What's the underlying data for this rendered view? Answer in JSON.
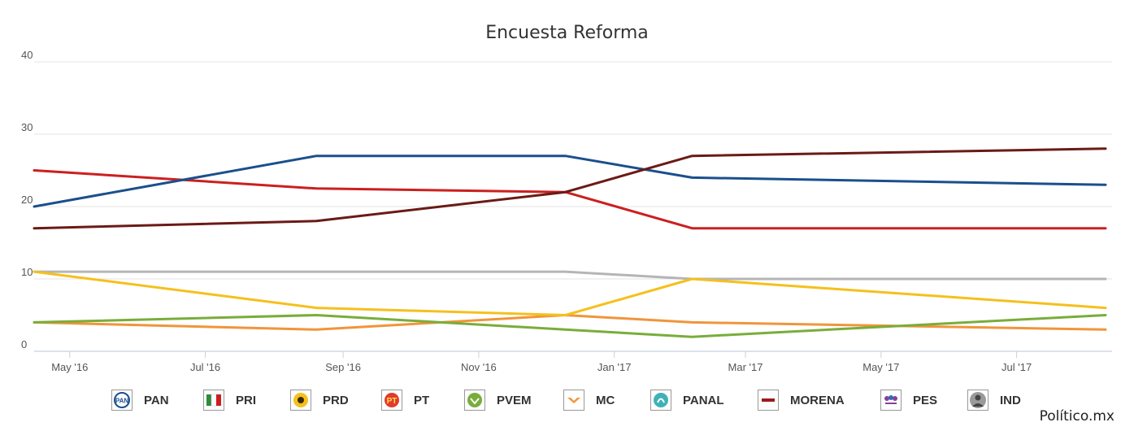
{
  "chart_data": {
    "type": "line",
    "title": "Encuesta Reforma",
    "xlabel": "",
    "ylabel": "",
    "ylim": [
      0,
      40
    ],
    "yticks": [
      0,
      10,
      20,
      30,
      40
    ],
    "xlim": [
      "2016-04-15",
      "2017-08-10"
    ],
    "xticks": [
      {
        "date": "2016-05-01",
        "label": "May '16"
      },
      {
        "date": "2016-07-01",
        "label": "Jul '16"
      },
      {
        "date": "2016-09-01",
        "label": "Sep '16"
      },
      {
        "date": "2016-11-01",
        "label": "Nov '16"
      },
      {
        "date": "2017-01-01",
        "label": "Jan '17"
      },
      {
        "date": "2017-03-01",
        "label": "Mar '17"
      },
      {
        "date": "2017-05-01",
        "label": "May '17"
      },
      {
        "date": "2017-07-01",
        "label": "Jul '17"
      }
    ],
    "x": [
      "2016-04-15",
      "2016-08-20",
      "2016-12-10",
      "2017-02-05",
      "2017-08-10"
    ],
    "grid": true,
    "legend": "bottom",
    "series": [
      {
        "name": "PAN",
        "color": "#1a4f8c",
        "values": [
          20,
          27,
          27,
          24,
          23
        ]
      },
      {
        "name": "PRI",
        "color": "#cc1f1f",
        "values": [
          25,
          22.5,
          22,
          17,
          17
        ]
      },
      {
        "name": "PRD",
        "color": "#f5c01c",
        "values": [
          11,
          6,
          5,
          10,
          6
        ]
      },
      {
        "name": "PT",
        "color": "#e23a2e",
        "values": [
          null,
          null,
          null,
          null,
          null
        ]
      },
      {
        "name": "PVEM",
        "color": "#79ad3a",
        "values": [
          4,
          5,
          3,
          2,
          5
        ]
      },
      {
        "name": "MC",
        "color": "#f0953a",
        "values": [
          4,
          3,
          5,
          4,
          3
        ]
      },
      {
        "name": "PANAL",
        "color": "#3fb2b8",
        "values": [
          null,
          null,
          null,
          null,
          null
        ]
      },
      {
        "name": "MORENA",
        "color": "#6b1a15",
        "values": [
          17,
          18,
          22,
          27,
          28
        ]
      },
      {
        "name": "PES",
        "color": "#8a3f9c",
        "values": [
          null,
          null,
          null,
          null,
          null
        ]
      },
      {
        "name": "IND",
        "color": "#b5b5b5",
        "values": [
          11,
          11,
          11,
          10,
          10
        ]
      }
    ]
  },
  "legend": {
    "items": [
      {
        "name": "PAN",
        "logo": "pan-logo",
        "color": "#1a4f8c"
      },
      {
        "name": "PRI",
        "logo": "pri-logo",
        "color": "#cc1f1f"
      },
      {
        "name": "PRD",
        "logo": "prd-logo",
        "color": "#f5c01c"
      },
      {
        "name": "PT",
        "logo": "pt-logo",
        "color": "#e23a2e"
      },
      {
        "name": "PVEM",
        "logo": "pvem-logo",
        "color": "#79ad3a"
      },
      {
        "name": "MC",
        "logo": "mc-logo",
        "color": "#f0953a"
      },
      {
        "name": "PANAL",
        "logo": "panal-logo",
        "color": "#3fb2b8"
      },
      {
        "name": "MORENA",
        "logo": "morena-logo",
        "color": "#9b1c1c"
      },
      {
        "name": "PES",
        "logo": "pes-logo",
        "color": "#8a3f9c"
      },
      {
        "name": "IND",
        "logo": "ind-logo",
        "color": "#666666"
      }
    ]
  },
  "credit": "Político.mx"
}
